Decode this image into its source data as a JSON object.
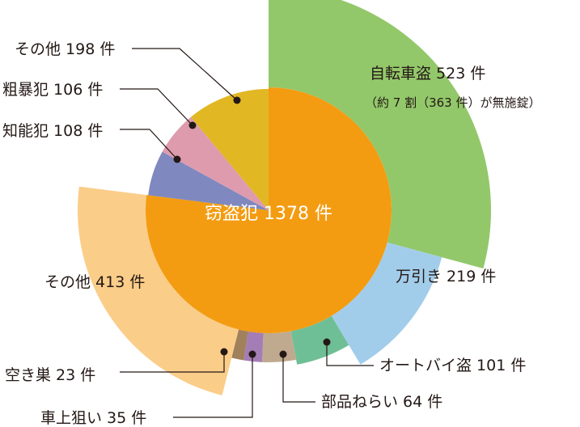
{
  "chart_data": {
    "type": "pie",
    "title": "",
    "inner_ring": {
      "label": "窃盗犯 1378 件",
      "slices": [
        {
          "name": "窃盗犯",
          "value": 1378,
          "color": "#F39C12"
        },
        {
          "name": "知能犯",
          "value": 108,
          "color": "#7F88BF"
        },
        {
          "name": "粗暴犯",
          "value": 106,
          "color": "#DE9BAD"
        },
        {
          "name": "その他",
          "value": 198,
          "color": "#E2B724"
        }
      ]
    },
    "outer_ring": {
      "parent": "窃盗犯",
      "slices": [
        {
          "name": "自転車盗",
          "value": 523,
          "color": "#93C86A"
        },
        {
          "name": "万引き",
          "value": 219,
          "color": "#A2CDEA"
        },
        {
          "name": "オートバイ盗",
          "value": 101,
          "color": "#6FBF96"
        },
        {
          "name": "部品ねらい",
          "value": 64,
          "color": "#BFAA8F"
        },
        {
          "name": "車上狙い",
          "value": 35,
          "color": "#A57DB6"
        },
        {
          "name": "空き巣",
          "value": 23,
          "color": "#A1805C"
        },
        {
          "name": "その他",
          "value": 413,
          "color": "#FACD89"
        }
      ]
    },
    "labels": {
      "theft_center": "窃盗犯 1378 件",
      "bicycle": "自転車盗 523 件",
      "bicycle_note": "（約 7 割（363 件）が無施錠）",
      "shoplifting": "万引き 219 件",
      "motorbike": "オートバイ盗 101 件",
      "parts": "部品ねらい 64 件",
      "car": "車上狙い 35 件",
      "burglary": "空き巣 23 件",
      "theft_other": "その他 413 件",
      "intellectual": "知能犯 108 件",
      "violent": "粗暴犯 106 件",
      "other": "その他 198 件"
    }
  }
}
